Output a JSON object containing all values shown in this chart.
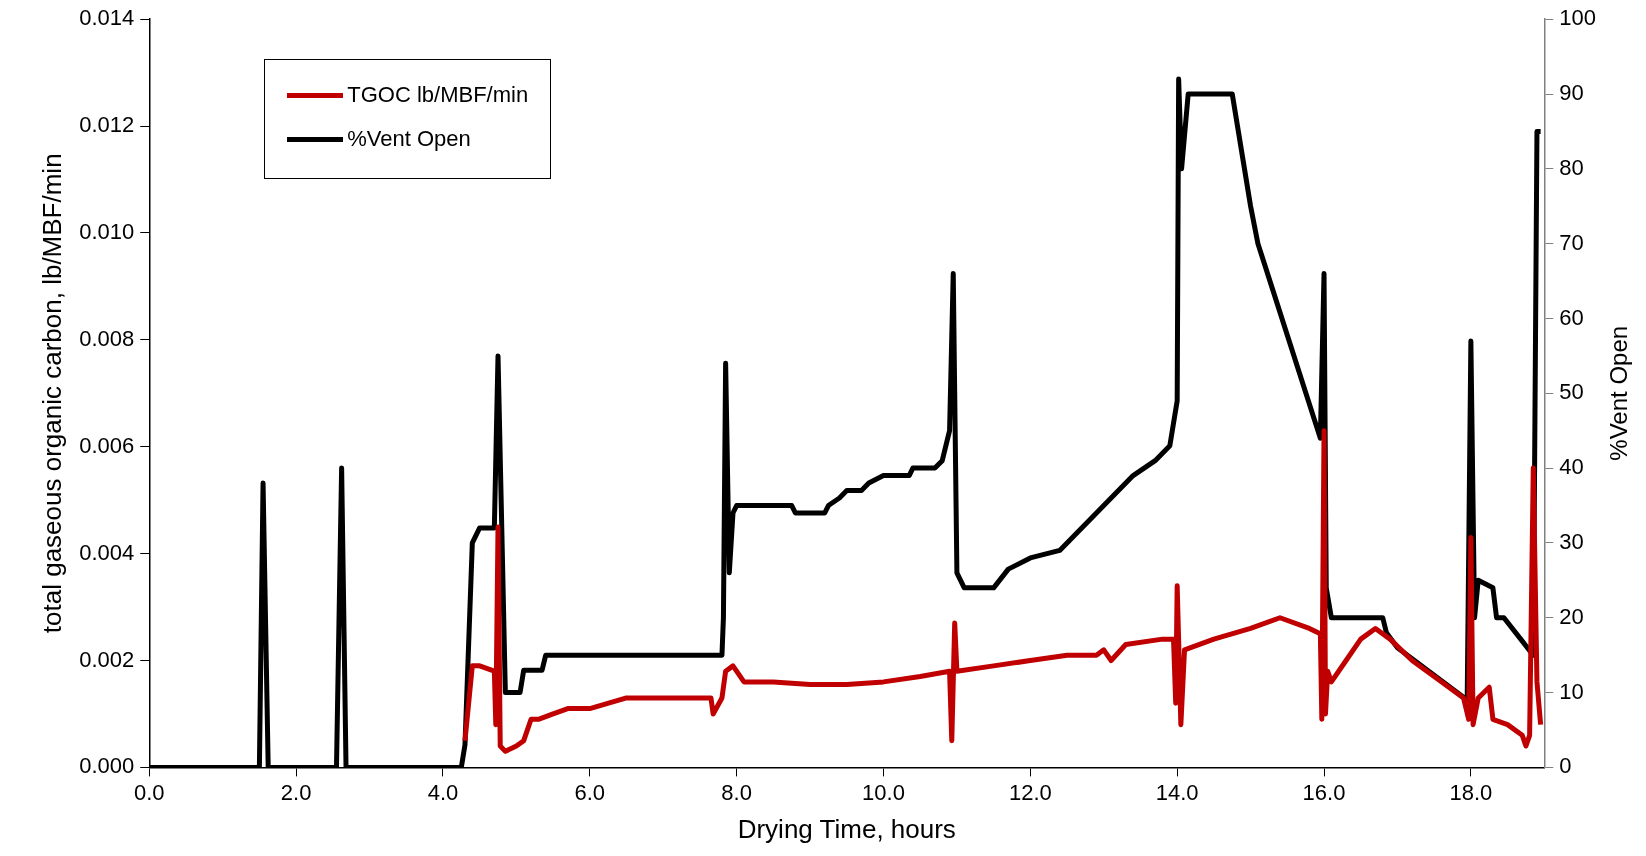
{
  "chart_data": {
    "type": "line",
    "xlabel": "Drying Time, hours",
    "ylabel": "total gaseous organic carbon, lb/MBF/min",
    "y2label": "%Vent Open",
    "xlim": [
      0,
      19
    ],
    "xticks": [
      {
        "value": 0,
        "label": "0.0"
      },
      {
        "value": 2,
        "label": "2.0"
      },
      {
        "value": 4,
        "label": "4.0"
      },
      {
        "value": 6,
        "label": "6.0"
      },
      {
        "value": 8,
        "label": "8.0"
      },
      {
        "value": 10,
        "label": "10.0"
      },
      {
        "value": 12,
        "label": "12.0"
      },
      {
        "value": 14,
        "label": "14.0"
      },
      {
        "value": 16,
        "label": "16.0"
      },
      {
        "value": 18,
        "label": "18.0"
      }
    ],
    "ylim": [
      0,
      0.014
    ],
    "yticks": [
      {
        "value": 0,
        "label": "0.000"
      },
      {
        "value": 0.002,
        "label": "0.002"
      },
      {
        "value": 0.004,
        "label": "0.004"
      },
      {
        "value": 0.006,
        "label": "0.006"
      },
      {
        "value": 0.008,
        "label": "0.008"
      },
      {
        "value": 0.01,
        "label": "0.010"
      },
      {
        "value": 0.012,
        "label": "0.012"
      },
      {
        "value": 0.014,
        "label": "0.014"
      }
    ],
    "y2lim": [
      0,
      100
    ],
    "y2ticks": [
      0,
      10,
      20,
      30,
      40,
      50,
      60,
      70,
      80,
      90,
      100
    ],
    "grid": false,
    "legend": "top left",
    "marker": "none",
    "line_style": "solid",
    "series": [
      {
        "name": "TGOC lb/MBF/min",
        "color": "#c00000",
        "x": [
          4.3,
          4.4,
          4.5,
          4.7,
          4.72,
          4.75,
          4.78,
          4.85,
          5.0,
          5.1,
          5.2,
          5.3,
          5.5,
          5.7,
          6.0,
          6.5,
          7.0,
          7.5,
          7.65,
          7.68,
          7.8,
          7.85,
          7.95,
          8.1,
          8.5,
          9.0,
          9.5,
          10.0,
          10.5,
          10.9,
          10.93,
          10.97,
          11.0,
          11.5,
          12.0,
          12.5,
          12.9,
          13.0,
          13.1,
          13.3,
          13.8,
          13.95,
          13.98,
          14.0,
          14.05,
          14.1,
          14.5,
          15.0,
          15.4,
          15.8,
          15.95,
          15.97,
          16.0,
          16.02,
          16.05,
          16.1,
          16.3,
          16.5,
          16.7,
          16.9,
          17.2,
          17.5,
          17.9,
          17.97,
          18.0,
          18.03,
          18.1,
          18.25,
          18.3,
          18.5,
          18.7,
          18.75,
          18.8,
          18.85,
          18.9,
          18.95
        ],
        "values": [
          0.0005,
          0.0019,
          0.0019,
          0.0018,
          0.0008,
          0.0045,
          0.0004,
          0.0003,
          0.0004,
          0.0005,
          0.0009,
          0.0009,
          0.001,
          0.0011,
          0.0011,
          0.0013,
          0.0013,
          0.0013,
          0.0013,
          0.001,
          0.0013,
          0.0018,
          0.0019,
          0.0016,
          0.0016,
          0.00155,
          0.00155,
          0.0016,
          0.0017,
          0.0018,
          0.0005,
          0.0027,
          0.0018,
          0.0019,
          0.002,
          0.0021,
          0.0021,
          0.0022,
          0.002,
          0.0023,
          0.0024,
          0.0024,
          0.0012,
          0.0034,
          0.0008,
          0.0022,
          0.0024,
          0.0026,
          0.0028,
          0.0026,
          0.0025,
          0.0009,
          0.0063,
          0.001,
          0.0018,
          0.0016,
          0.002,
          0.0024,
          0.0026,
          0.0024,
          0.002,
          0.0017,
          0.0013,
          0.0009,
          0.0043,
          0.0008,
          0.0013,
          0.0015,
          0.0009,
          0.0008,
          0.0006,
          0.0004,
          0.0006,
          0.0056,
          0.0016,
          0.0008
        ]
      },
      {
        "name": "%Vent Open",
        "color": "#000000",
        "axis": "y2",
        "x": [
          0,
          1.5,
          1.55,
          1.62,
          2.55,
          2.62,
          2.68,
          4.25,
          4.3,
          4.4,
          4.5,
          4.7,
          4.75,
          4.85,
          5.05,
          5.1,
          5.35,
          5.4,
          7.8,
          7.82,
          7.85,
          7.9,
          7.95,
          8.0,
          8.75,
          8.8,
          9.2,
          9.25,
          9.4,
          9.5,
          9.7,
          9.8,
          10.0,
          10.35,
          10.4,
          10.7,
          10.8,
          10.9,
          10.95,
          11.0,
          11.1,
          11.5,
          11.7,
          12.0,
          12.4,
          12.6,
          13.0,
          13.2,
          13.4,
          13.7,
          13.9,
          14.0,
          14.02,
          14.06,
          14.15,
          14.75,
          15.0,
          15.1,
          15.95,
          16.0,
          16.03,
          16.1,
          16.8,
          16.85,
          17.0,
          17.95,
          18.0,
          18.05,
          18.1,
          18.3,
          18.35,
          18.45,
          18.85,
          18.9,
          18.95
        ],
        "values": [
          0,
          0,
          38,
          0,
          0,
          40,
          0,
          0,
          3,
          30,
          32,
          32,
          55,
          10,
          10,
          13,
          13,
          15,
          15,
          20,
          54,
          26,
          34,
          35,
          35,
          34,
          34,
          35,
          36,
          37,
          37,
          38,
          39,
          39,
          40,
          40,
          41,
          45,
          66,
          26,
          24,
          24,
          26.5,
          28,
          29,
          31,
          35,
          37,
          39,
          41,
          43,
          49,
          92,
          80,
          90,
          90,
          75,
          70,
          44,
          66,
          24,
          20,
          20,
          18,
          16,
          9,
          57,
          20,
          25,
          24,
          20,
          20,
          15,
          85,
          85
        ]
      }
    ]
  }
}
